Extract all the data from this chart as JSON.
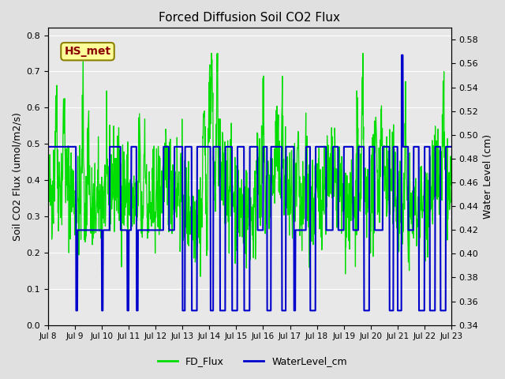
{
  "title": "Forced Diffusion Soil CO2 Flux",
  "ylabel_left": "Soil CO2 Flux (umol/m2/s)",
  "ylabel_right": "Water Level (cm)",
  "background_color": "#e0e0e0",
  "plot_bg_color": "#e8e8e8",
  "fd_color": "#00dd00",
  "wl_color": "#0000cc",
  "ylim_left": [
    0.0,
    0.82
  ],
  "ylim_right": [
    0.34,
    0.59
  ],
  "yticks_left": [
    0.0,
    0.1,
    0.2,
    0.3,
    0.4,
    0.5,
    0.6,
    0.7,
    0.8
  ],
  "yticks_right": [
    0.34,
    0.36,
    0.38,
    0.4,
    0.42,
    0.44,
    0.46,
    0.48,
    0.5,
    0.52,
    0.54,
    0.56,
    0.58
  ],
  "xtick_labels": [
    "Jul 8",
    "Jul 9",
    "Jul 10",
    "Jul 11",
    "Jul 12",
    "Jul 13",
    "Jul 14",
    "Jul 15",
    "Jul 16",
    "Jul 17",
    "Jul 18",
    "Jul 19",
    "Jul 20",
    "Jul 21",
    "Jul 22",
    "Jul 23"
  ],
  "legend_fd": "FD_Flux",
  "legend_wl": "WaterLevel_cm",
  "annotation_text": "HS_met",
  "annotation_color": "#8b0000",
  "annotation_bg": "#ffff99",
  "annotation_edge": "#8b8000"
}
